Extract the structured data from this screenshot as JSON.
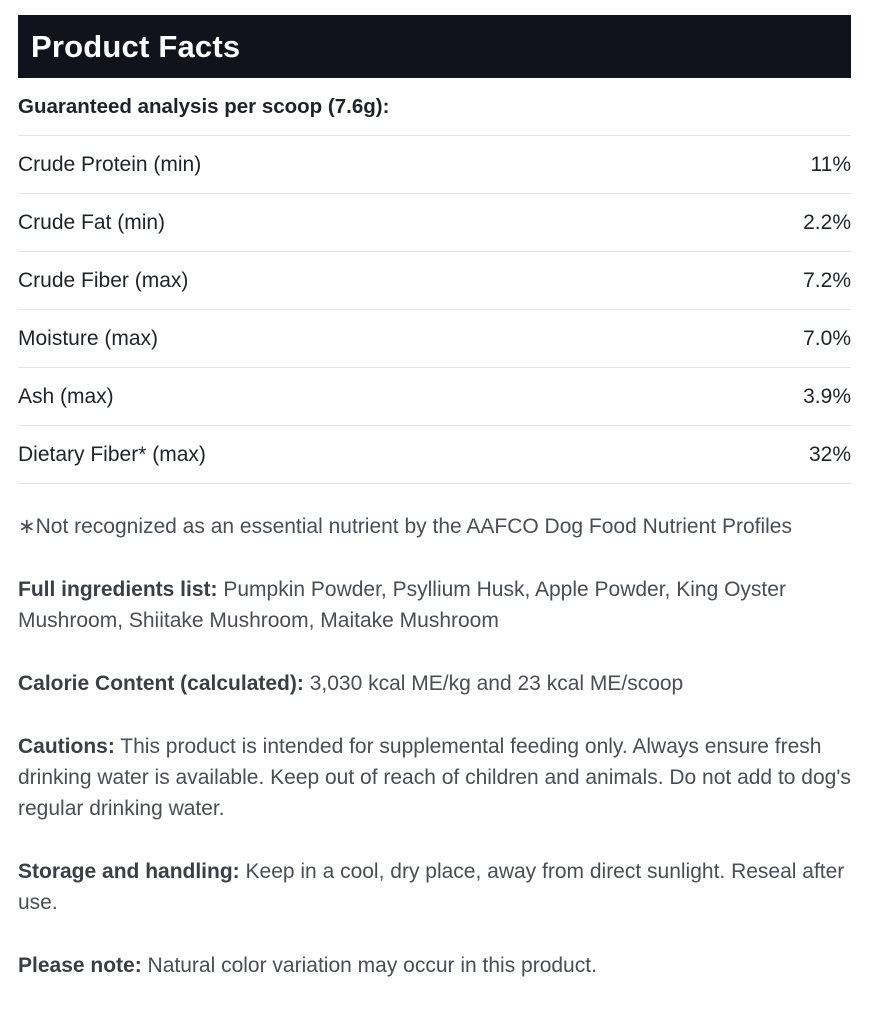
{
  "header": {
    "title": "Product Facts"
  },
  "analysis": {
    "heading": "Guaranteed analysis per scoop (7.6g):",
    "rows": [
      {
        "label": "Crude Protein (min)",
        "value": "11%"
      },
      {
        "label": "Crude Fat (min)",
        "value": "2.2%"
      },
      {
        "label": "Crude Fiber (max)",
        "value": "7.2%"
      },
      {
        "label": "Moisture (max)",
        "value": "7.0%"
      },
      {
        "label": "Ash (max)",
        "value": "3.9%"
      },
      {
        "label": "Dietary Fiber* (max)",
        "value": "32%"
      }
    ]
  },
  "footnote": "∗Not recognized as an essential nutrient by the AAFCO Dog Food Nutrient Profiles",
  "sections": [
    {
      "label": "Full ingredients list:",
      "text": " Pumpkin Powder, Psyllium Husk, Apple Powder, King Oyster Mushroom, Shiitake Mushroom, Maitake Mushroom"
    },
    {
      "label": "Calorie Content (calculated):",
      "text": " 3,030 kcal ME/kg and 23 kcal ME/scoop"
    },
    {
      "label": "Cautions:",
      "text": " This product is intended for supplemental feeding only. Always ensure fresh drinking water is available. Keep out of reach of children and animals. Do not add to dog's regular drinking water."
    },
    {
      "label": "Storage and handling:",
      "text": " Keep in a cool, dry place, away from direct sunlight. Reseal after use."
    },
    {
      "label": "Please note:",
      "text": " Natural color variation may occur in this product."
    }
  ],
  "colors": {
    "header_bg": "#10131c",
    "text": "#1f2228",
    "muted": "#4a4d55",
    "divider": "#e3e4e7"
  }
}
